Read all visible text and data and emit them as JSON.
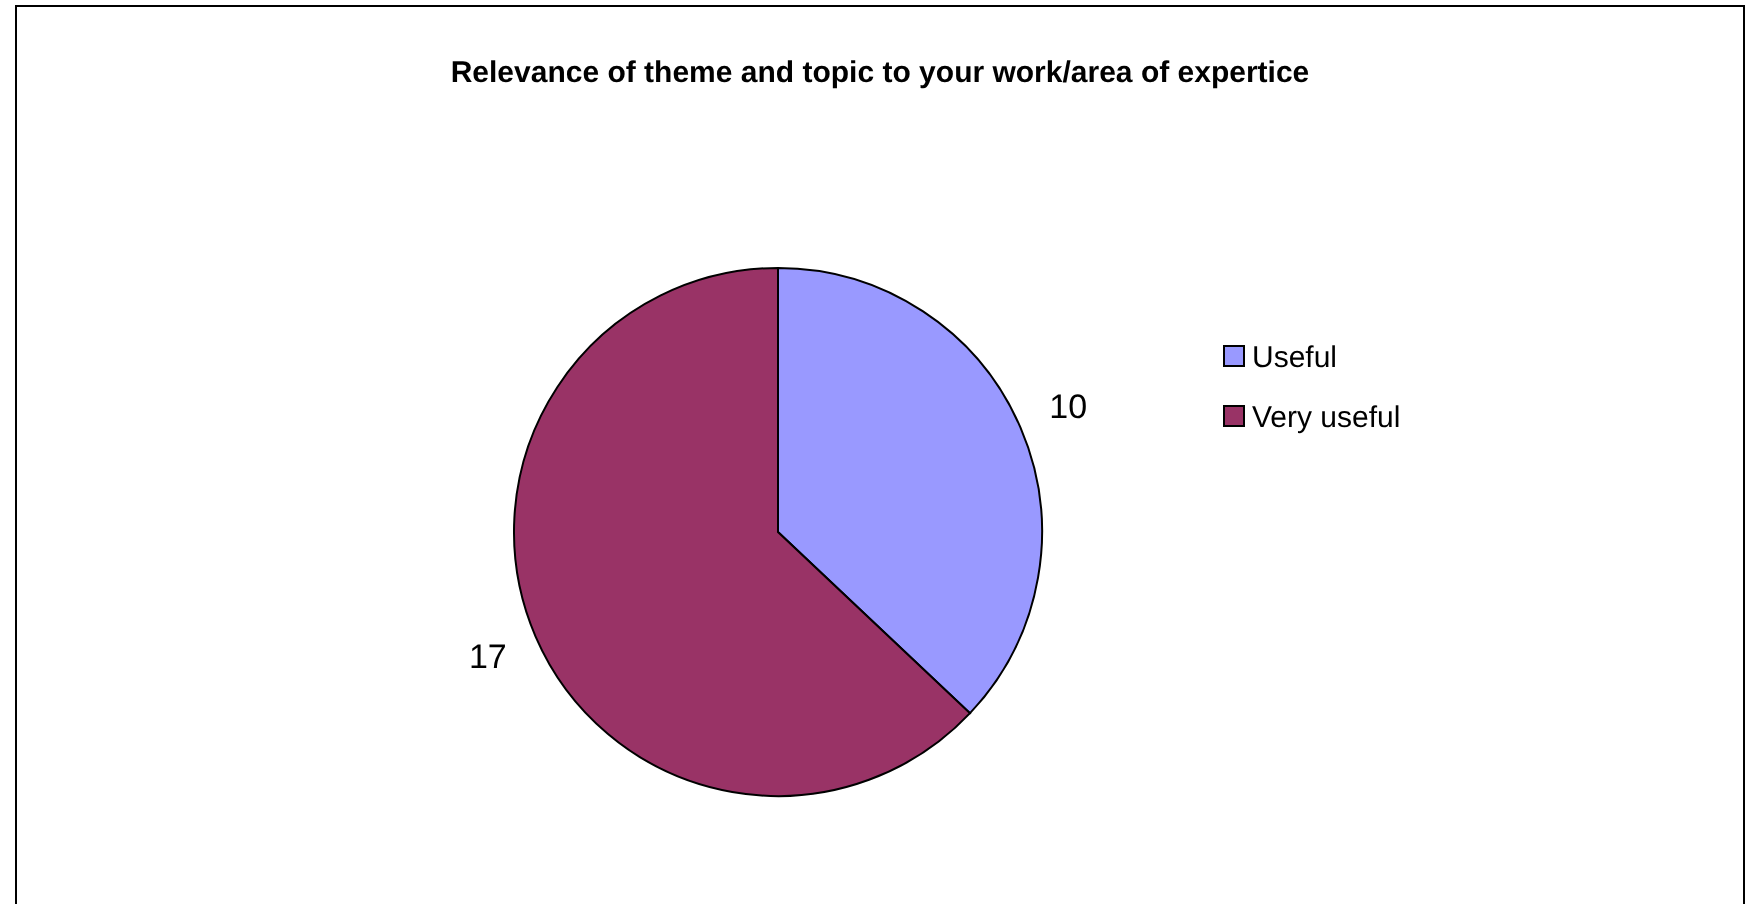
{
  "chart_data": {
    "type": "pie",
    "title": "Relevance of theme and topic to your work/area of expertice",
    "categories": [
      "Useful",
      "Very useful"
    ],
    "values": [
      10,
      17
    ],
    "colors": [
      "#9999ff",
      "#993366"
    ],
    "data_labels": true,
    "legend": "right"
  }
}
